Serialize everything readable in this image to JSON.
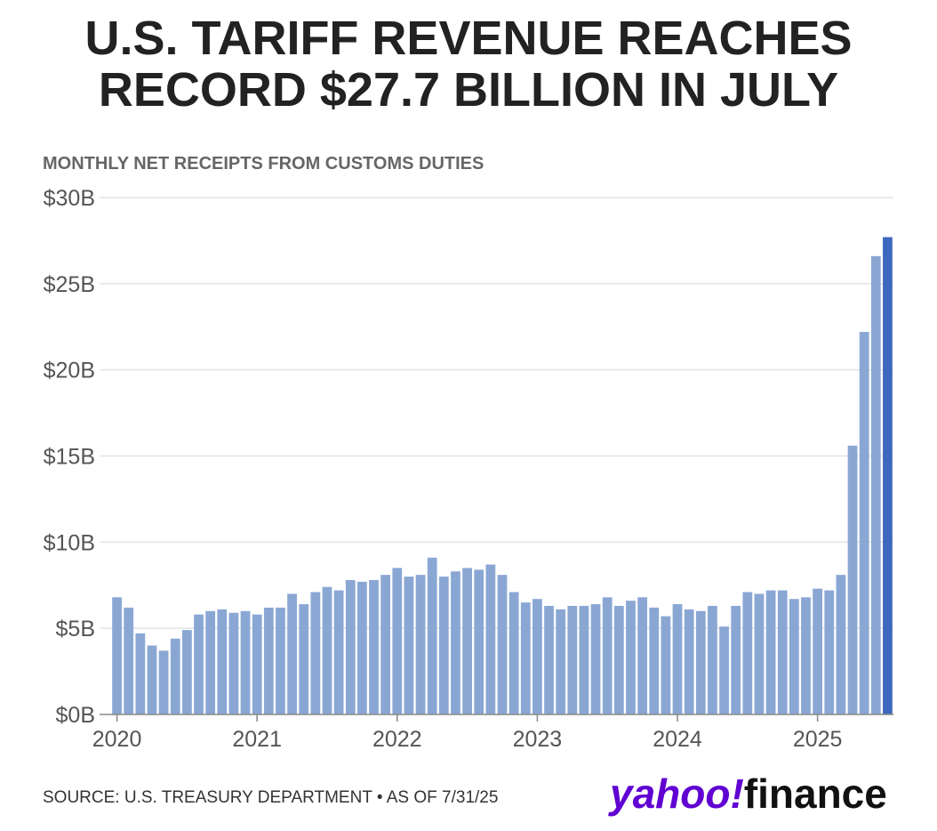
{
  "headline": {
    "line1": "U.S. TARIFF REVENUE REACHES",
    "line2": "RECORD $27.7 BILLION IN JULY"
  },
  "chart_data": {
    "type": "bar",
    "title": "U.S. TARIFF REVENUE REACHES RECORD $27.7 BILLION IN JULY",
    "subtitle": "MONTHLY NET RECEIPTS FROM CUSTOMS DUTIES",
    "xlabel": "",
    "ylabel": "",
    "ylim": [
      0,
      30
    ],
    "y_unit": "billions USD",
    "y_ticks": [
      {
        "value": 0,
        "label": "$0B"
      },
      {
        "value": 5,
        "label": "$5B"
      },
      {
        "value": 10,
        "label": "$10B"
      },
      {
        "value": 15,
        "label": "$15B"
      },
      {
        "value": 20,
        "label": "$20B"
      },
      {
        "value": 25,
        "label": "$25B"
      },
      {
        "value": 30,
        "label": "$30B"
      }
    ],
    "x_ticks": [
      {
        "index": 0,
        "label": "2020"
      },
      {
        "index": 12,
        "label": "2021"
      },
      {
        "index": 24,
        "label": "2022"
      },
      {
        "index": 36,
        "label": "2023"
      },
      {
        "index": 48,
        "label": "2024"
      },
      {
        "index": 60,
        "label": "2025"
      }
    ],
    "categories": [
      "2020-01",
      "2020-02",
      "2020-03",
      "2020-04",
      "2020-05",
      "2020-06",
      "2020-07",
      "2020-08",
      "2020-09",
      "2020-10",
      "2020-11",
      "2020-12",
      "2021-01",
      "2021-02",
      "2021-03",
      "2021-04",
      "2021-05",
      "2021-06",
      "2021-07",
      "2021-08",
      "2021-09",
      "2021-10",
      "2021-11",
      "2021-12",
      "2022-01",
      "2022-02",
      "2022-03",
      "2022-04",
      "2022-05",
      "2022-06",
      "2022-07",
      "2022-08",
      "2022-09",
      "2022-10",
      "2022-11",
      "2022-12",
      "2023-01",
      "2023-02",
      "2023-03",
      "2023-04",
      "2023-05",
      "2023-06",
      "2023-07",
      "2023-08",
      "2023-09",
      "2023-10",
      "2023-11",
      "2023-12",
      "2024-01",
      "2024-02",
      "2024-03",
      "2024-04",
      "2024-05",
      "2024-06",
      "2024-07",
      "2024-08",
      "2024-09",
      "2024-10",
      "2024-11",
      "2024-12",
      "2025-01",
      "2025-02",
      "2025-03",
      "2025-04",
      "2025-05",
      "2025-06",
      "2025-07"
    ],
    "values": [
      6.8,
      6.2,
      4.7,
      4.0,
      3.7,
      4.4,
      4.9,
      5.8,
      6.0,
      6.1,
      5.9,
      6.0,
      5.8,
      6.2,
      6.2,
      7.0,
      6.4,
      7.1,
      7.4,
      7.2,
      7.8,
      7.7,
      7.8,
      8.1,
      8.5,
      8.0,
      8.1,
      9.1,
      8.0,
      8.3,
      8.5,
      8.4,
      8.7,
      8.1,
      7.1,
      6.5,
      6.7,
      6.3,
      6.1,
      6.3,
      6.3,
      6.4,
      6.8,
      6.3,
      6.6,
      6.8,
      6.2,
      5.7,
      6.4,
      6.1,
      6.0,
      6.3,
      5.1,
      6.3,
      7.1,
      7.0,
      7.2,
      7.2,
      6.7,
      6.8,
      7.3,
      7.2,
      8.1,
      15.6,
      22.2,
      26.6,
      27.7
    ],
    "highlight_index": 66,
    "colors": {
      "bar": "#8aa7d4",
      "highlight": "#3d68bd",
      "grid": "#e3e3e3",
      "axis": "#888888",
      "tick_text": "#555555"
    }
  },
  "footer": {
    "source": "SOURCE: U.S. TREASURY DEPARTMENT • AS OF 7/31/25"
  },
  "logo": {
    "yahoo": "yahoo",
    "bang": "!",
    "finance": "finance",
    "brand_color": "#6001d2"
  }
}
